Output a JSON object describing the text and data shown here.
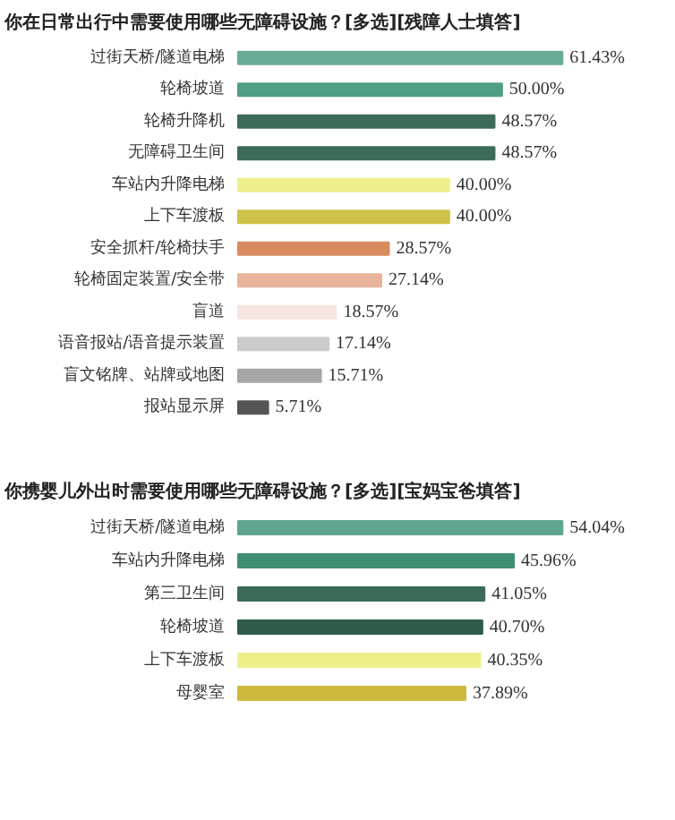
{
  "chart_data": [
    {
      "type": "bar",
      "orientation": "horizontal",
      "title": "你在日常出行中需要使用哪些无障碍设施？[多选][残障人士填答]",
      "categories": [
        "过街天桥/隧道电梯",
        "轮椅坡道",
        "轮椅升降机",
        "无障碍卫生间",
        "车站内升降电梯",
        "上下车渡板",
        "安全抓杆/轮椅扶手",
        "轮椅固定装置/安全带",
        "盲道",
        "语音报站/语音提示装置",
        "盲文铭牌、站牌或地图",
        "报站显示屏"
      ],
      "values": [
        61.43,
        50.0,
        48.57,
        48.57,
        40.0,
        40.0,
        28.57,
        27.14,
        18.57,
        17.14,
        15.71,
        5.71
      ],
      "value_labels": [
        "61.43%",
        "50.00%",
        "48.57%",
        "48.57%",
        "40.00%",
        "40.00%",
        "28.57%",
        "27.14%",
        "18.57%",
        "17.14%",
        "15.71%",
        "5.71%"
      ],
      "colors": [
        "#6aab98",
        "#4f9e86",
        "#3d6b58",
        "#3d6b58",
        "#eef08a",
        "#cfc24a",
        "#d98b60",
        "#e8b59a",
        "#f5e6df",
        "#cccccc",
        "#a6a6a6",
        "#555555"
      ],
      "tick_labels": "y"
    },
    {
      "type": "bar",
      "orientation": "horizontal",
      "title": "你携婴儿外出时需要使用哪些无障碍设施？[多选][宝妈宝爸填答]",
      "categories": [
        "过街天桥/隧道电梯",
        "车站内升降电梯",
        "第三卫生间",
        "轮椅坡道",
        "上下车渡板",
        "母婴室"
      ],
      "values": [
        54.04,
        45.96,
        41.05,
        40.7,
        40.35,
        37.89
      ],
      "value_labels": [
        "54.04%",
        "45.96%",
        "41.05%",
        "40.70%",
        "40.35%",
        "37.89%"
      ],
      "colors": [
        "#5fa590",
        "#3f8f73",
        "#3d6b58",
        "#2f5a48",
        "#eef08a",
        "#cdb93e"
      ],
      "tick_labels": "y"
    }
  ]
}
